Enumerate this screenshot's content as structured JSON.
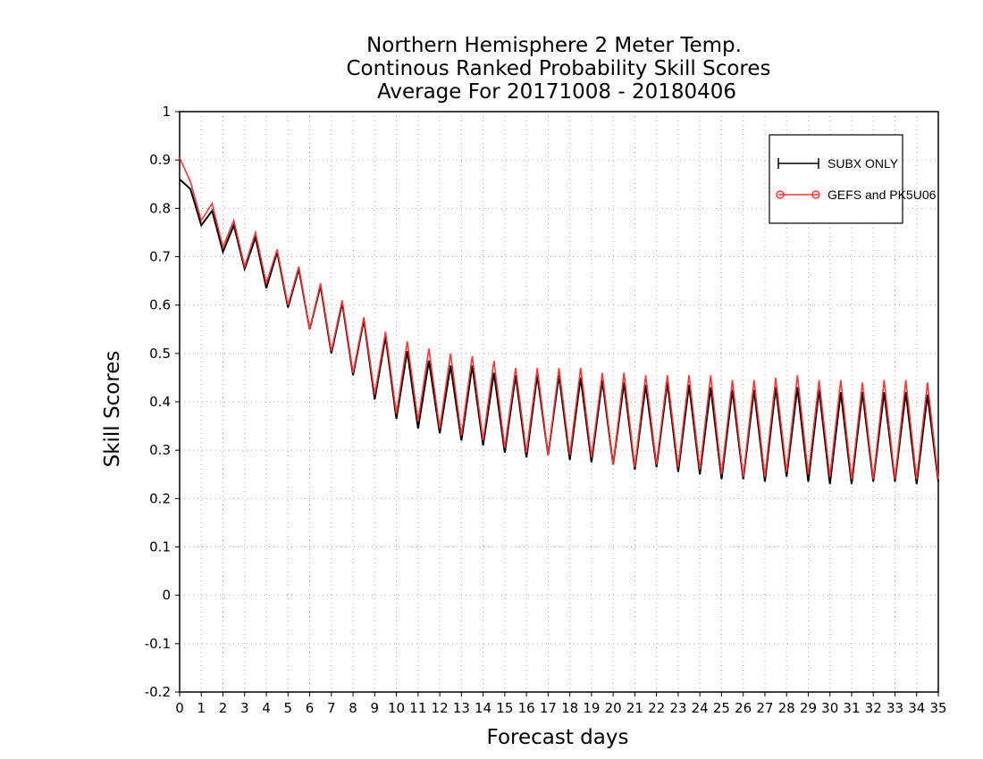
{
  "chart_data": {
    "type": "line",
    "title": [
      "Northern Hemisphere 2 Meter Temp.",
      "Continous Ranked Probability Skill Scores",
      "Average For 20171008 - 20180406"
    ],
    "xlabel": "Forecast days",
    "ylabel": "Skill Scores",
    "xlim": [
      0,
      35
    ],
    "ylim": [
      -0.2,
      1
    ],
    "x_ticks": [
      0,
      1,
      2,
      3,
      4,
      5,
      6,
      7,
      8,
      9,
      10,
      11,
      12,
      13,
      14,
      15,
      16,
      17,
      18,
      19,
      20,
      21,
      22,
      23,
      24,
      25,
      26,
      27,
      28,
      29,
      30,
      31,
      32,
      33,
      34,
      35
    ],
    "y_ticks": [
      -0.2,
      -0.1,
      0,
      0.1,
      0.2,
      0.3,
      0.4,
      0.5,
      0.6,
      0.7,
      0.8,
      0.9,
      1
    ],
    "grid": true,
    "legend_position": "top-right",
    "x": [
      0,
      0.5,
      1,
      1.5,
      2,
      2.5,
      3,
      3.5,
      4,
      4.5,
      5,
      5.5,
      6,
      6.5,
      7,
      7.5,
      8,
      8.5,
      9,
      9.5,
      10,
      10.5,
      11,
      11.5,
      12,
      12.5,
      13,
      13.5,
      14,
      14.5,
      15,
      15.5,
      16,
      16.5,
      17,
      17.5,
      18,
      18.5,
      19,
      19.5,
      20,
      20.5,
      21,
      21.5,
      22,
      22.5,
      23,
      23.5,
      24,
      24.5,
      25,
      25.5,
      26,
      26.5,
      27,
      27.5,
      28,
      28.5,
      29,
      29.5,
      30,
      30.5,
      31,
      31.5,
      32,
      32.5,
      33,
      33.5,
      34,
      34.5,
      35
    ],
    "series": [
      {
        "name": "SUBX ONLY",
        "color": "#000000",
        "marker": "plus",
        "values": [
          0.86,
          0.84,
          0.765,
          0.795,
          0.71,
          0.765,
          0.675,
          0.74,
          0.635,
          0.71,
          0.595,
          0.675,
          0.55,
          0.64,
          0.5,
          0.605,
          0.455,
          0.57,
          0.405,
          0.535,
          0.365,
          0.505,
          0.345,
          0.485,
          0.335,
          0.475,
          0.32,
          0.475,
          0.31,
          0.46,
          0.295,
          0.455,
          0.285,
          0.455,
          0.29,
          0.455,
          0.28,
          0.45,
          0.275,
          0.445,
          0.27,
          0.44,
          0.26,
          0.435,
          0.265,
          0.44,
          0.255,
          0.435,
          0.25,
          0.43,
          0.24,
          0.425,
          0.24,
          0.425,
          0.235,
          0.43,
          0.245,
          0.43,
          0.235,
          0.425,
          0.23,
          0.42,
          0.23,
          0.42,
          0.235,
          0.42,
          0.235,
          0.42,
          0.23,
          0.415,
          0.235
        ]
      },
      {
        "name": "GEFS and PK5U06",
        "color": "#ff3333",
        "marker": "circle",
        "values": [
          0.905,
          0.855,
          0.775,
          0.81,
          0.72,
          0.775,
          0.68,
          0.75,
          0.645,
          0.715,
          0.6,
          0.68,
          0.55,
          0.645,
          0.505,
          0.61,
          0.46,
          0.575,
          0.415,
          0.545,
          0.375,
          0.525,
          0.36,
          0.51,
          0.345,
          0.5,
          0.33,
          0.495,
          0.32,
          0.485,
          0.305,
          0.47,
          0.295,
          0.47,
          0.29,
          0.47,
          0.29,
          0.47,
          0.285,
          0.46,
          0.27,
          0.46,
          0.265,
          0.455,
          0.27,
          0.455,
          0.265,
          0.455,
          0.26,
          0.455,
          0.25,
          0.445,
          0.245,
          0.445,
          0.245,
          0.45,
          0.255,
          0.455,
          0.25,
          0.445,
          0.245,
          0.445,
          0.24,
          0.44,
          0.24,
          0.445,
          0.24,
          0.445,
          0.24,
          0.44,
          0.24
        ]
      }
    ]
  }
}
